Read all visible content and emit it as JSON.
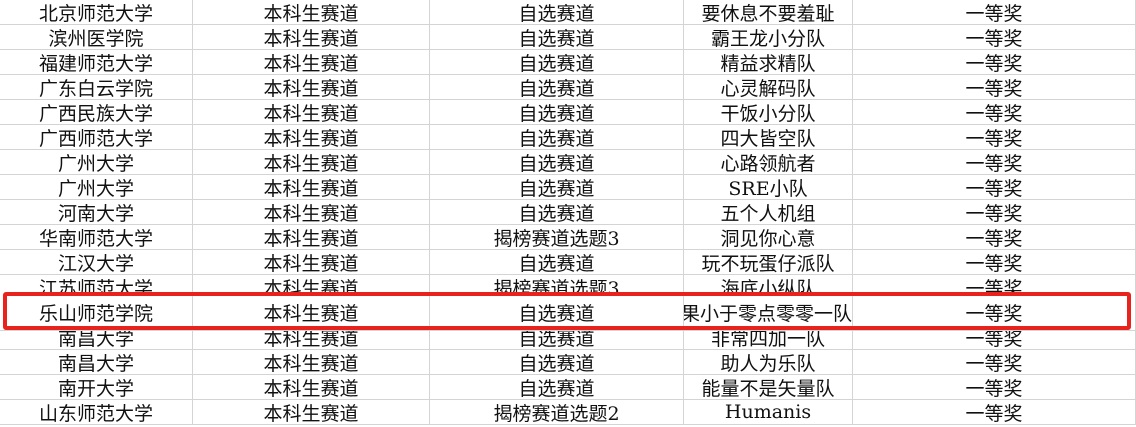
{
  "table": {
    "rows": [
      [
        "北京师范大学",
        "本科生赛道",
        "自选赛道",
        "要休息不要羞耻",
        "一等奖"
      ],
      [
        "滨州医学院",
        "本科生赛道",
        "自选赛道",
        "霸王龙小分队",
        "一等奖"
      ],
      [
        "福建师范大学",
        "本科生赛道",
        "自选赛道",
        "精益求精队",
        "一等奖"
      ],
      [
        "广东白云学院",
        "本科生赛道",
        "自选赛道",
        "心灵解码队",
        "一等奖"
      ],
      [
        "广西民族大学",
        "本科生赛道",
        "自选赛道",
        "干饭小分队",
        "一等奖"
      ],
      [
        "广西师范大学",
        "本科生赛道",
        "自选赛道",
        "四大皆空队",
        "一等奖"
      ],
      [
        "广州大学",
        "本科生赛道",
        "自选赛道",
        "心路领航者",
        "一等奖"
      ],
      [
        "广州大学",
        "本科生赛道",
        "自选赛道",
        "SRE小队",
        "一等奖"
      ],
      [
        "河南大学",
        "本科生赛道",
        "自选赛道",
        "五个人机组",
        "一等奖"
      ],
      [
        "华南师范大学",
        "本科生赛道",
        "揭榜赛道选题3",
        "洞见你心意",
        "一等奖"
      ],
      [
        "江汉大学",
        "本科生赛道",
        "自选赛道",
        "玩不玩蛋仔派队",
        "一等奖"
      ],
      [
        "江苏师范大学",
        "本科生赛道",
        "揭榜赛道选题3",
        "海底小纵队",
        "一等奖"
      ],
      [
        "乐山师范学院",
        "本科生赛道",
        "自选赛道",
        "结果小于零点零零一队",
        "一等奖"
      ],
      [
        "南昌大学",
        "本科生赛道",
        "自选赛道",
        "非常四加一队",
        "一等奖"
      ],
      [
        "南昌大学",
        "本科生赛道",
        "自选赛道",
        "助人为乐队",
        "一等奖"
      ],
      [
        "南开大学",
        "本科生赛道",
        "自选赛道",
        "能量不是矢量队",
        "一等奖"
      ],
      [
        "山东师范大学",
        "本科生赛道",
        "揭榜赛道选题2",
        "Humanis",
        "一等奖"
      ]
    ],
    "highlight_row": 12
  }
}
